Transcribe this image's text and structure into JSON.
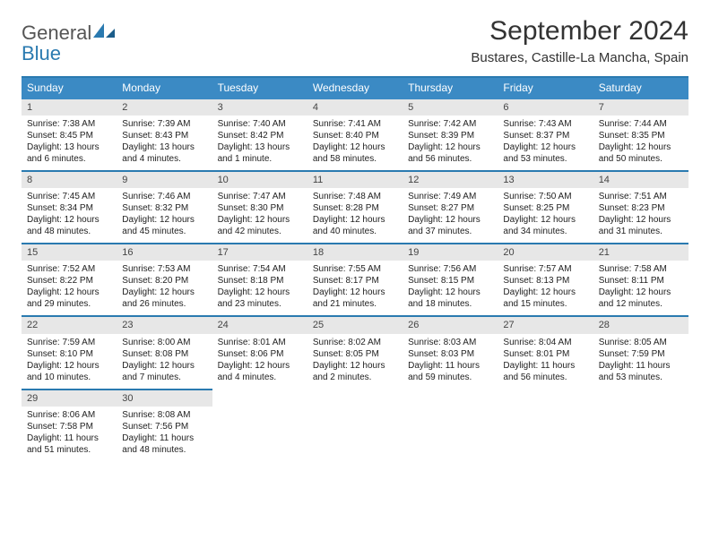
{
  "logo": {
    "line1": "General",
    "line2": "Blue"
  },
  "title": "September 2024",
  "location": "Bustares, Castille-La Mancha, Spain",
  "header_color": "#3b8ac4",
  "divider_color": "#2a7ab0",
  "daynum_bg": "#e7e7e7",
  "text_color": "#222222",
  "fonts": {
    "title_size": 30,
    "location_size": 15,
    "head_size": 12,
    "cell_size": 10
  },
  "weekdays": [
    "Sunday",
    "Monday",
    "Tuesday",
    "Wednesday",
    "Thursday",
    "Friday",
    "Saturday"
  ],
  "weeks": [
    [
      {
        "n": "1",
        "sunrise": "Sunrise: 7:38 AM",
        "sunset": "Sunset: 8:45 PM",
        "daylight": "Daylight: 13 hours and 6 minutes."
      },
      {
        "n": "2",
        "sunrise": "Sunrise: 7:39 AM",
        "sunset": "Sunset: 8:43 PM",
        "daylight": "Daylight: 13 hours and 4 minutes."
      },
      {
        "n": "3",
        "sunrise": "Sunrise: 7:40 AM",
        "sunset": "Sunset: 8:42 PM",
        "daylight": "Daylight: 13 hours and 1 minute."
      },
      {
        "n": "4",
        "sunrise": "Sunrise: 7:41 AM",
        "sunset": "Sunset: 8:40 PM",
        "daylight": "Daylight: 12 hours and 58 minutes."
      },
      {
        "n": "5",
        "sunrise": "Sunrise: 7:42 AM",
        "sunset": "Sunset: 8:39 PM",
        "daylight": "Daylight: 12 hours and 56 minutes."
      },
      {
        "n": "6",
        "sunrise": "Sunrise: 7:43 AM",
        "sunset": "Sunset: 8:37 PM",
        "daylight": "Daylight: 12 hours and 53 minutes."
      },
      {
        "n": "7",
        "sunrise": "Sunrise: 7:44 AM",
        "sunset": "Sunset: 8:35 PM",
        "daylight": "Daylight: 12 hours and 50 minutes."
      }
    ],
    [
      {
        "n": "8",
        "sunrise": "Sunrise: 7:45 AM",
        "sunset": "Sunset: 8:34 PM",
        "daylight": "Daylight: 12 hours and 48 minutes."
      },
      {
        "n": "9",
        "sunrise": "Sunrise: 7:46 AM",
        "sunset": "Sunset: 8:32 PM",
        "daylight": "Daylight: 12 hours and 45 minutes."
      },
      {
        "n": "10",
        "sunrise": "Sunrise: 7:47 AM",
        "sunset": "Sunset: 8:30 PM",
        "daylight": "Daylight: 12 hours and 42 minutes."
      },
      {
        "n": "11",
        "sunrise": "Sunrise: 7:48 AM",
        "sunset": "Sunset: 8:28 PM",
        "daylight": "Daylight: 12 hours and 40 minutes."
      },
      {
        "n": "12",
        "sunrise": "Sunrise: 7:49 AM",
        "sunset": "Sunset: 8:27 PM",
        "daylight": "Daylight: 12 hours and 37 minutes."
      },
      {
        "n": "13",
        "sunrise": "Sunrise: 7:50 AM",
        "sunset": "Sunset: 8:25 PM",
        "daylight": "Daylight: 12 hours and 34 minutes."
      },
      {
        "n": "14",
        "sunrise": "Sunrise: 7:51 AM",
        "sunset": "Sunset: 8:23 PM",
        "daylight": "Daylight: 12 hours and 31 minutes."
      }
    ],
    [
      {
        "n": "15",
        "sunrise": "Sunrise: 7:52 AM",
        "sunset": "Sunset: 8:22 PM",
        "daylight": "Daylight: 12 hours and 29 minutes."
      },
      {
        "n": "16",
        "sunrise": "Sunrise: 7:53 AM",
        "sunset": "Sunset: 8:20 PM",
        "daylight": "Daylight: 12 hours and 26 minutes."
      },
      {
        "n": "17",
        "sunrise": "Sunrise: 7:54 AM",
        "sunset": "Sunset: 8:18 PM",
        "daylight": "Daylight: 12 hours and 23 minutes."
      },
      {
        "n": "18",
        "sunrise": "Sunrise: 7:55 AM",
        "sunset": "Sunset: 8:17 PM",
        "daylight": "Daylight: 12 hours and 21 minutes."
      },
      {
        "n": "19",
        "sunrise": "Sunrise: 7:56 AM",
        "sunset": "Sunset: 8:15 PM",
        "daylight": "Daylight: 12 hours and 18 minutes."
      },
      {
        "n": "20",
        "sunrise": "Sunrise: 7:57 AM",
        "sunset": "Sunset: 8:13 PM",
        "daylight": "Daylight: 12 hours and 15 minutes."
      },
      {
        "n": "21",
        "sunrise": "Sunrise: 7:58 AM",
        "sunset": "Sunset: 8:11 PM",
        "daylight": "Daylight: 12 hours and 12 minutes."
      }
    ],
    [
      {
        "n": "22",
        "sunrise": "Sunrise: 7:59 AM",
        "sunset": "Sunset: 8:10 PM",
        "daylight": "Daylight: 12 hours and 10 minutes."
      },
      {
        "n": "23",
        "sunrise": "Sunrise: 8:00 AM",
        "sunset": "Sunset: 8:08 PM",
        "daylight": "Daylight: 12 hours and 7 minutes."
      },
      {
        "n": "24",
        "sunrise": "Sunrise: 8:01 AM",
        "sunset": "Sunset: 8:06 PM",
        "daylight": "Daylight: 12 hours and 4 minutes."
      },
      {
        "n": "25",
        "sunrise": "Sunrise: 8:02 AM",
        "sunset": "Sunset: 8:05 PM",
        "daylight": "Daylight: 12 hours and 2 minutes."
      },
      {
        "n": "26",
        "sunrise": "Sunrise: 8:03 AM",
        "sunset": "Sunset: 8:03 PM",
        "daylight": "Daylight: 11 hours and 59 minutes."
      },
      {
        "n": "27",
        "sunrise": "Sunrise: 8:04 AM",
        "sunset": "Sunset: 8:01 PM",
        "daylight": "Daylight: 11 hours and 56 minutes."
      },
      {
        "n": "28",
        "sunrise": "Sunrise: 8:05 AM",
        "sunset": "Sunset: 7:59 PM",
        "daylight": "Daylight: 11 hours and 53 minutes."
      }
    ],
    [
      {
        "n": "29",
        "sunrise": "Sunrise: 8:06 AM",
        "sunset": "Sunset: 7:58 PM",
        "daylight": "Daylight: 11 hours and 51 minutes."
      },
      {
        "n": "30",
        "sunrise": "Sunrise: 8:08 AM",
        "sunset": "Sunset: 7:56 PM",
        "daylight": "Daylight: 11 hours and 48 minutes."
      },
      null,
      null,
      null,
      null,
      null
    ]
  ]
}
